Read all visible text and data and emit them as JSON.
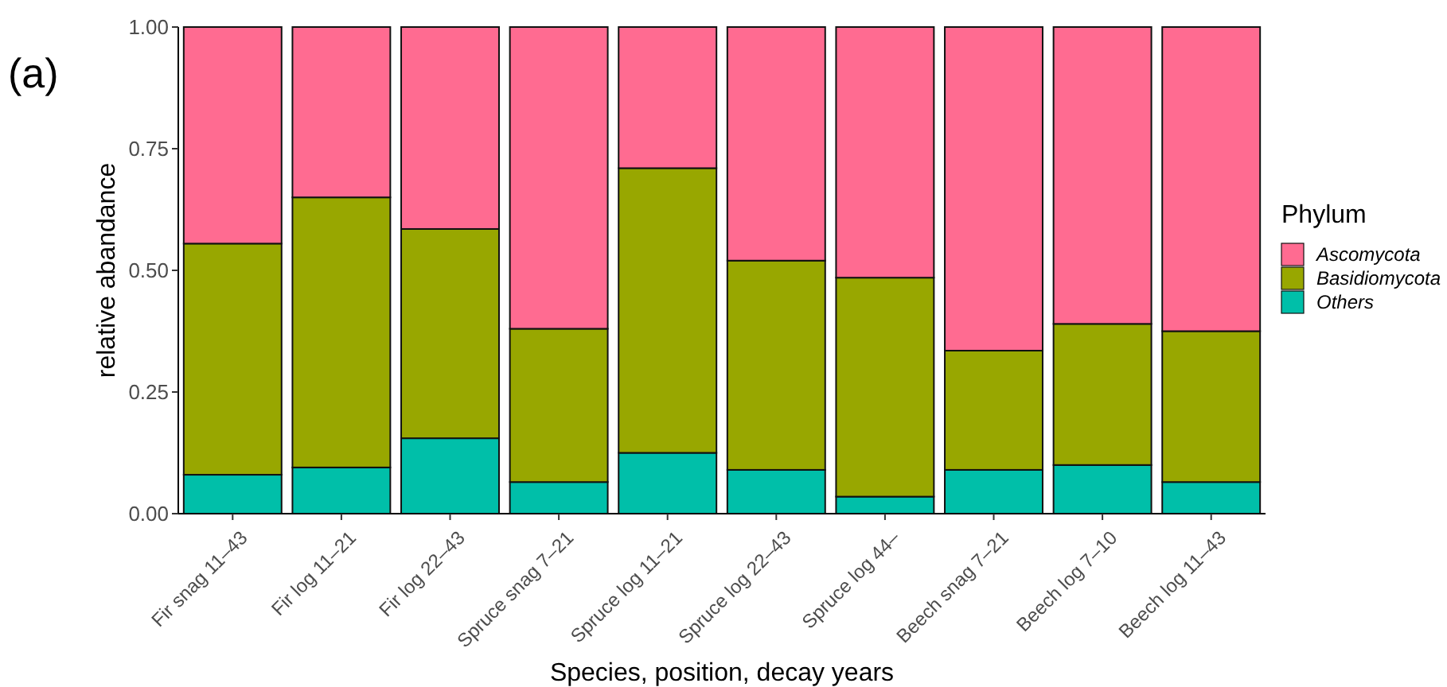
{
  "chart_data": {
    "type": "bar",
    "stacked": true,
    "xlabel": "Species, position, decay years",
    "ylabel": "relative abandance",
    "legend_title": "Phylum",
    "legend": "right",
    "annotations": [
      "(a)"
    ],
    "categories": [
      "Fir snag 11–43",
      "Fir log 11–21",
      "Fir log 22–43",
      "Spruce snag 7–21",
      "Spruce log 11–21",
      "Spruce log 22–43",
      "Spruce log 44–",
      "Beech snag 7–21",
      "Beech log 7–10",
      "Beech log 11–43"
    ],
    "ylim": [
      0,
      1
    ],
    "yticks": [
      {
        "value": 0,
        "label": "0.00"
      },
      {
        "value": 0.25,
        "label": "0.25"
      },
      {
        "value": 0.5,
        "label": "0.50"
      },
      {
        "value": 0.75,
        "label": "0.75"
      },
      {
        "value": 1,
        "label": "1.00"
      }
    ],
    "grid": false,
    "series": [
      {
        "name": "Others",
        "color": "#00bfa9",
        "values": [
          0.08,
          0.095,
          0.155,
          0.065,
          0.125,
          0.09,
          0.035,
          0.09,
          0.1,
          0.065
        ]
      },
      {
        "name": "Basidiomycota",
        "color": "#98a700",
        "values": [
          0.475,
          0.555,
          0.43,
          0.315,
          0.585,
          0.43,
          0.45,
          0.245,
          0.29,
          0.31
        ]
      },
      {
        "name": "Ascomycota",
        "color": "#ff6b91",
        "values": [
          0.445,
          0.35,
          0.415,
          0.62,
          0.29,
          0.48,
          0.515,
          0.665,
          0.61,
          0.625
        ]
      }
    ]
  }
}
